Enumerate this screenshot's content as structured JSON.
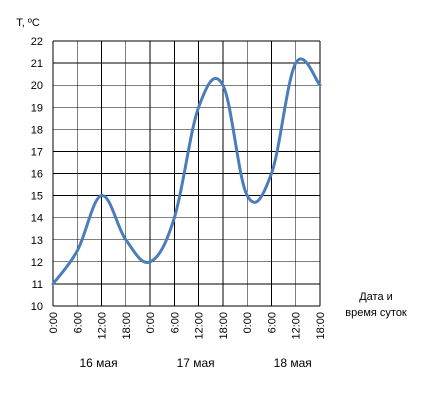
{
  "chart_data": {
    "type": "line",
    "ylabel": "T, ºC",
    "xlabel_lines": [
      "Дата и",
      "время суток"
    ],
    "ylim": [
      10,
      22
    ],
    "yticks": [
      10,
      11,
      12,
      13,
      14,
      15,
      16,
      17,
      18,
      19,
      20,
      21,
      22
    ],
    "x_ticks": [
      "0:00",
      "6:00",
      "12:00",
      "18:00",
      "0:00",
      "6:00",
      "12:00",
      "18:00",
      "0:00",
      "6:00",
      "12:00",
      "18:00"
    ],
    "days": [
      "16 мая",
      "17 мая",
      "18 мая"
    ],
    "grid": true,
    "line_color": "#4a7ebb",
    "series": [
      {
        "x": [
          0,
          6,
          12,
          18,
          24,
          30,
          36,
          42,
          48,
          54,
          60,
          66
        ],
        "values": [
          11.0,
          12.5,
          15.0,
          13.0,
          12.0,
          14.0,
          19.0,
          20.0,
          15.0,
          16.0,
          21.0,
          20.0
        ]
      }
    ]
  }
}
